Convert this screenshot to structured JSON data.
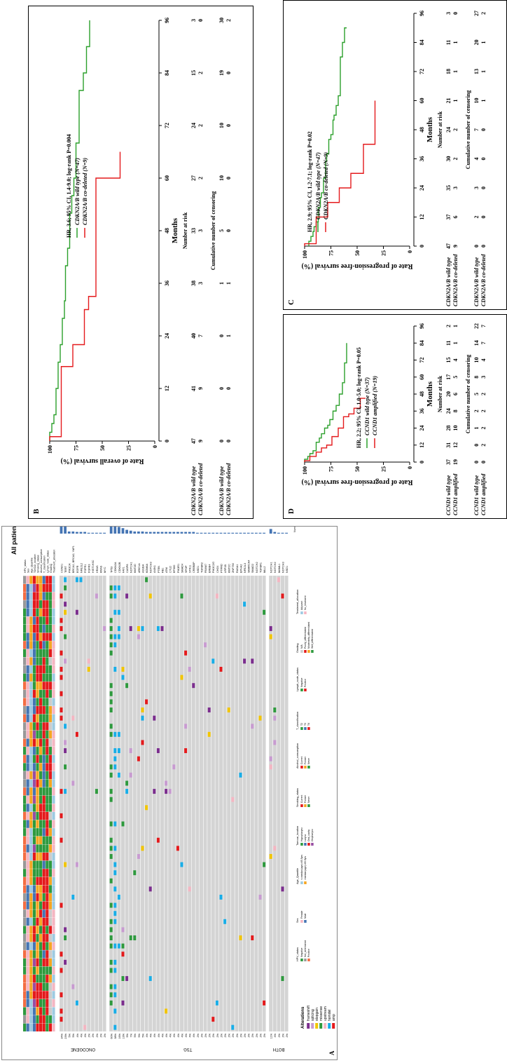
{
  "panelA": {
    "label": "A",
    "title": "All patients (n=56)",
    "groups": [
      "ONCOGENE",
      "TSG",
      "BOTH"
    ],
    "clinical_tracks": [
      "HPV_status",
      "Sex",
      "Age_Quantile",
      "Tumour_location",
      "Smoking_status",
      "Alcohol_consumption",
      "T_classification",
      "Lymph_node_status",
      "Grading",
      "Treatment_allocation"
    ],
    "oncogene_genes": [
      "CCND1",
      "TERT",
      "PIK3CA",
      "BRCA1, BRCA2, YAP1",
      "EGFR",
      "NFE2L2",
      "FGFR1",
      "FGFR3",
      "HIST1H3C",
      "HRAS",
      "KRAS",
      "MYC"
    ],
    "oncogene_pct": [
      "34%",
      "23%",
      "5%",
      "5%",
      "4%",
      "4%",
      "4%",
      "2%",
      "2%",
      "2%",
      "2%",
      "2%"
    ],
    "tsg_genes": [
      "TP53",
      "CDKN2A",
      "CDKN2B",
      "FAT1",
      "CASP8",
      "NOTCH1",
      "KMT2D",
      "ARID1A",
      "AJUBA",
      "KDM6A",
      "NOTCH3",
      "AXIN1",
      "PTEN",
      "RB1",
      "ATM",
      "CYLD",
      "EP300",
      "PIK3R1",
      "SMAD4",
      "SPOP",
      "STK11",
      "CREBBP",
      "NSD1",
      "TGFBR2",
      "FBXW7",
      "ERBB4",
      "PIK3C2G",
      "CHD4",
      "PTPRD",
      "LRP1B",
      "KMT2C",
      "ZNF750",
      "RASA1",
      "EPHA2",
      "NFE2L3",
      "SMARCA4",
      "SMAD2",
      "NOTCH2",
      "TGFBR1",
      "MLL2"
    ],
    "tsg_pct": [
      "60%",
      "38%",
      "16%",
      "13%",
      "9%",
      "7%",
      "5%",
      "5%",
      "5%",
      "4%",
      "4%",
      "4%",
      "4%",
      "4%",
      "4%",
      "4%",
      "4%",
      "4%",
      "4%",
      "4%",
      "4%",
      "4%",
      "2%",
      "2%",
      "2%",
      "2%",
      "2%",
      "2%",
      "2%",
      "2%",
      "2%",
      "2%",
      "2%",
      "2%",
      "2%",
      "2%",
      "2%",
      "2%",
      "2%",
      "2%"
    ],
    "both_genes": [
      "NOTCH1",
      "NOTCH2",
      "MAML1",
      "NOTCH3",
      "NSD1"
    ],
    "both_pct": [
      "11%",
      "4%",
      "2%",
      "2%",
      "2%"
    ],
    "barplot_label": "Number of samples",
    "alterations_title": "Alterations",
    "alterations": [
      {
        "name": "frameshift",
        "color": "#7B2D8E"
      },
      {
        "name": "splicing",
        "color": "#c89bd1"
      },
      {
        "name": "stopgain",
        "color": "#F2C500"
      },
      {
        "name": "missense",
        "color": "#2E9A3E"
      },
      {
        "name": "upstream",
        "color": "#F4B6C2"
      },
      {
        "name": "homdel",
        "color": "#19AEE8"
      },
      {
        "name": "amp",
        "color": "#E41A1C"
      }
    ],
    "legend_groups": [
      {
        "title": "HPV_status",
        "items": [
          {
            "name": "Negative",
            "color": "#2E9A3E"
          },
          {
            "name": "Not_determined",
            "color": "#999999"
          },
          {
            "name": "Positive",
            "color": "#F46D43"
          }
        ]
      },
      {
        "title": "Sex",
        "items": [
          {
            "name": "Female",
            "color": "#F4B6C2"
          },
          {
            "name": "Male",
            "color": "#4575B4"
          }
        ]
      },
      {
        "title": "Age_Quantile",
        "items": [
          {
            "name": "<=median(age)=65.5yrs",
            "color": "#9ECAE1"
          },
          {
            "name": ">median(age)=65.5yrs",
            "color": "#F5A623"
          }
        ]
      },
      {
        "title": "Tumour_location",
        "items": [
          {
            "name": "Hypopharynx",
            "color": "#2E9A3E"
          },
          {
            "name": "Larynx",
            "color": "#4575B4"
          },
          {
            "name": "Oral_cavity",
            "color": "#E41A1C"
          },
          {
            "name": "Oropharynx",
            "color": "#984EA3"
          }
        ]
      },
      {
        "title": "Smoking_status",
        "items": [
          {
            "name": "Current",
            "color": "#E41A1C"
          },
          {
            "name": "Former",
            "color": "#F5A623"
          },
          {
            "name": "Never",
            "color": "#2E9A3E"
          }
        ]
      },
      {
        "title": "Alcohol_consumption",
        "items": [
          {
            "name": "Current",
            "color": "#E41A1C"
          },
          {
            "name": "Former",
            "color": "#F5A623"
          },
          {
            "name": "Never",
            "color": "#2E9A3E"
          }
        ]
      },
      {
        "title": "T_classification",
        "items": [
          {
            "name": "T2",
            "color": "#2E9A3E"
          },
          {
            "name": "T3",
            "color": "#4575B4"
          },
          {
            "name": "T4",
            "color": "#E41A1C"
          }
        ]
      },
      {
        "title": "Lymph_node_status",
        "items": [
          {
            "name": "Negative",
            "color": "#2E9A3E"
          },
          {
            "name": "Positive",
            "color": "#E41A1C"
          }
        ]
      },
      {
        "title": "Grading",
        "items": [
          {
            "name": "N/A",
            "color": "#cccccc"
          },
          {
            "name": "Poorly_differentiated",
            "color": "#E41A1C"
          },
          {
            "name": "Moderately_differentiated",
            "color": "#F5A623"
          },
          {
            "name": "Well_differentiated",
            "color": "#2E9A3E"
          }
        ]
      },
      {
        "title": "Treatment_allocation",
        "items": [
          {
            "name": "Adjuvant",
            "color": "#9ECAE1"
          },
          {
            "name": "No_treatment",
            "color": "#F4B6C2"
          }
        ]
      }
    ]
  },
  "panelB": {
    "label": "B",
    "ylabel": "Rate of overall survival (%)",
    "xlabel": "Months",
    "annotation": "HR, 3.6; 95% CI, 1.4-9.0; log-rank P=0.004",
    "legend": [
      {
        "name": "CDKN2A/B wild type (N=47)",
        "color": "#2CA02C"
      },
      {
        "name": "CDKN2A/B co-deleted (N=9)",
        "color": "#E41A1C"
      }
    ],
    "risk_title": "Number at risk",
    "censor_title": "Cumulative number of censoring",
    "row_labels": [
      "CDKN2A/B  wild type",
      "CDKN2A/B co-deleted"
    ],
    "risk": [
      [
        "47",
        "41",
        "40",
        "38",
        "33",
        "27",
        "24",
        "15",
        "3"
      ],
      [
        "9",
        "9",
        "7",
        "3",
        "3",
        "2",
        "2",
        "2",
        "0"
      ]
    ],
    "censor": [
      [
        "0",
        "0",
        "0",
        "1",
        "5",
        "10",
        "10",
        "19",
        "30"
      ],
      [
        "0",
        "0",
        "1",
        "1",
        "0",
        "0",
        "0",
        "0",
        "2"
      ]
    ]
  },
  "panelC": {
    "label": "C",
    "ylabel": "Rate of progression-free survival (%)",
    "xlabel": "Months",
    "annotation": "HR, 2.9; 95% CI, 1.2-7.1; log-rank P=0.02",
    "legend": [
      {
        "name": "CDKN2A/B wild type (N=47)",
        "color": "#2CA02C"
      },
      {
        "name": "CDKN2A/B co-deleted (N=9)",
        "color": "#E41A1C"
      }
    ],
    "risk_title": "Number at risk",
    "censor_title": "Cumulative number of censoring",
    "row_labels": [
      "CDKN2A/B  wild type",
      "CDKN2A/B co-deleted"
    ],
    "risk": [
      [
        "47",
        "37",
        "35",
        "30",
        "24",
        "21",
        "18",
        "11",
        "3"
      ],
      [
        "9",
        "6",
        "3",
        "2",
        "2",
        "1",
        "1",
        "1",
        "0"
      ]
    ],
    "censor": [
      [
        "0",
        "2",
        "3",
        "4",
        "7",
        "10",
        "13",
        "20",
        "27"
      ],
      [
        "0",
        "0",
        "0",
        "0",
        "0",
        "1",
        "1",
        "1",
        "2"
      ]
    ]
  },
  "panelD": {
    "label": "D",
    "ylabel": "Rate of progression-free survival (%)",
    "xlabel": "Months",
    "annotation": "HR, 2.2; 95% CI, 1.0-5.0; log-rank P=0.05",
    "legend": [
      {
        "name": "CCND1 wild type (N=37)",
        "color": "#2CA02C"
      },
      {
        "name": "CCND1 amplified (N=19)",
        "color": "#E41A1C"
      }
    ],
    "risk_title": "Number at risk",
    "censor_title": "Cumulative number of censoring",
    "row_labels": [
      "CCND1  wild type",
      "CCND1  amplified"
    ],
    "risk": [
      [
        "37",
        "31",
        "28",
        "24",
        "20",
        "17",
        "15",
        "11",
        "2"
      ],
      [
        "19",
        "12",
        "10",
        "8",
        "6",
        "5",
        "4",
        "1",
        "1"
      ]
    ],
    "censor": [
      [
        "0",
        "0",
        "1",
        "2",
        "5",
        "8",
        "10",
        "14",
        "22"
      ],
      [
        "0",
        "2",
        "2",
        "2",
        "2",
        "3",
        "4",
        "7",
        "7"
      ]
    ]
  },
  "chart_data": [
    {
      "type": "line",
      "title": "",
      "xlabel": "Months",
      "ylabel": "Rate of overall survival (%)",
      "xlim": [
        0,
        96
      ],
      "ylim": [
        0,
        100
      ],
      "xticks": [
        "0",
        "12",
        "24",
        "36",
        "48",
        "60",
        "72",
        "84",
        "96"
      ],
      "yticks": [
        "0",
        "25",
        "50",
        "75",
        "100"
      ],
      "series": [
        {
          "name": "CDKN2A/B wild type (N=47)",
          "x": [
            0,
            2,
            4,
            6,
            12,
            18,
            22,
            28,
            32,
            40,
            44,
            52,
            56,
            60,
            68,
            80,
            84,
            90,
            96
          ],
          "y": [
            100,
            98,
            96,
            94,
            92,
            90,
            88,
            86,
            85,
            83,
            81,
            79,
            77,
            75,
            72,
            68,
            65,
            62,
            62
          ]
        },
        {
          "name": "CDKN2A/B co-deleted (N=9)",
          "x": [
            0,
            1,
            12,
            17,
            22,
            28,
            30,
            33,
            55,
            60,
            66
          ],
          "y": [
            100,
            89,
            89,
            78,
            67,
            67,
            63,
            56,
            56,
            33,
            33
          ]
        }
      ]
    },
    {
      "type": "line",
      "title": "",
      "xlabel": "Months",
      "ylabel": "Rate of progression-free survival (%)",
      "xlim": [
        0,
        96
      ],
      "ylim": [
        0,
        100
      ],
      "xticks": [
        "0",
        "12",
        "24",
        "36",
        "48",
        "60",
        "72",
        "84",
        "96"
      ],
      "yticks": [
        "0",
        "25",
        "50",
        "75",
        "100"
      ],
      "series": [
        {
          "name": "CDKN2A/B wild type (N=47)",
          "x": [
            0,
            2,
            4,
            6,
            8,
            10,
            16,
            20,
            22,
            28,
            35,
            38,
            44,
            46,
            52,
            54,
            58,
            62,
            78,
            84,
            90
          ],
          "y": [
            96,
            94,
            92,
            91,
            89,
            87,
            85,
            84,
            82,
            80,
            79,
            77,
            75,
            73,
            72,
            70,
            68,
            66,
            64,
            62,
            60
          ],
          "note": ""
        },
        {
          "name": "CDKN2A/B co-deleted (N=9)",
          "x": [
            0,
            1,
            8,
            12,
            18,
            24,
            30,
            42,
            60
          ],
          "y": [
            100,
            89,
            89,
            78,
            67,
            56,
            44,
            33,
            33
          ]
        }
      ]
    },
    {
      "type": "line",
      "title": "",
      "xlabel": "Months",
      "ylabel": "Rate of progression-free survival (%)",
      "xlim": [
        0,
        96
      ],
      "ylim": [
        0,
        100
      ],
      "xticks": [
        "0",
        "12",
        "24",
        "36",
        "48",
        "60",
        "72",
        "84",
        "96"
      ],
      "yticks": [
        "0",
        "25",
        "50",
        "75",
        "100"
      ],
      "series": [
        {
          "name": "CCND1 wild type (N=37)",
          "x": [
            0,
            2,
            4,
            6,
            8,
            14,
            17,
            20,
            24,
            26,
            30,
            36,
            40,
            48,
            56,
            70,
            84
          ],
          "y": [
            100,
            97,
            95,
            92,
            89,
            86,
            84,
            81,
            78,
            76,
            73,
            70,
            67,
            64,
            62,
            60,
            60
          ]
        },
        {
          "name": "CCND1 amplified (N=19)",
          "x": [
            0,
            1,
            4,
            7,
            10,
            12,
            18,
            24,
            32,
            34,
            38,
            45
          ],
          "y": [
            100,
            95,
            89,
            84,
            79,
            74,
            68,
            63,
            58,
            53,
            47,
            42
          ]
        }
      ]
    }
  ]
}
